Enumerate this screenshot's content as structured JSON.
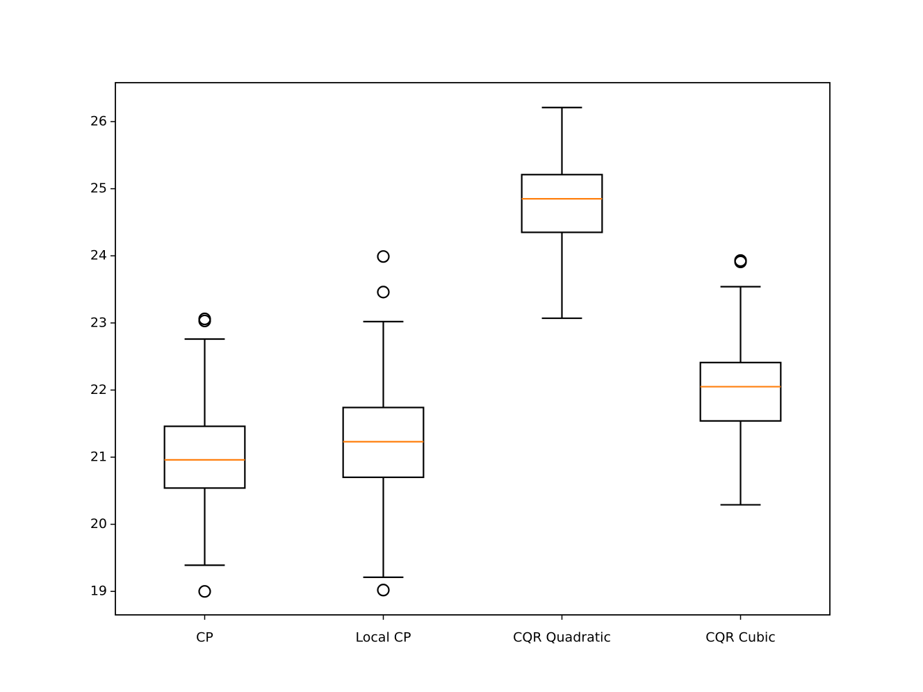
{
  "chart_data": {
    "type": "box",
    "categories": [
      "CP",
      "Local CP",
      "CQR Quadratic",
      "CQR Cubic"
    ],
    "boxes": [
      {
        "whislo": 19.39,
        "q1": 20.54,
        "med": 20.96,
        "q3": 21.46,
        "whishi": 22.76,
        "fliers": [
          23.03,
          23.06,
          19.0
        ]
      },
      {
        "whislo": 19.21,
        "q1": 20.7,
        "med": 21.23,
        "q3": 21.74,
        "whishi": 23.02,
        "fliers": [
          23.99,
          23.46,
          19.02
        ]
      },
      {
        "whislo": 23.07,
        "q1": 24.35,
        "med": 24.85,
        "q3": 25.21,
        "whishi": 26.21,
        "fliers": []
      },
      {
        "whislo": 20.29,
        "q1": 21.54,
        "med": 22.05,
        "q3": 22.41,
        "whishi": 23.54,
        "fliers": [
          23.91,
          23.93
        ]
      }
    ],
    "box_color": "#000000",
    "median_color": "#ff7f0e",
    "ylim": [
      18.65,
      26.58
    ],
    "yticks": [
      19,
      20,
      21,
      22,
      23,
      24,
      25,
      26
    ],
    "grid": false
  }
}
